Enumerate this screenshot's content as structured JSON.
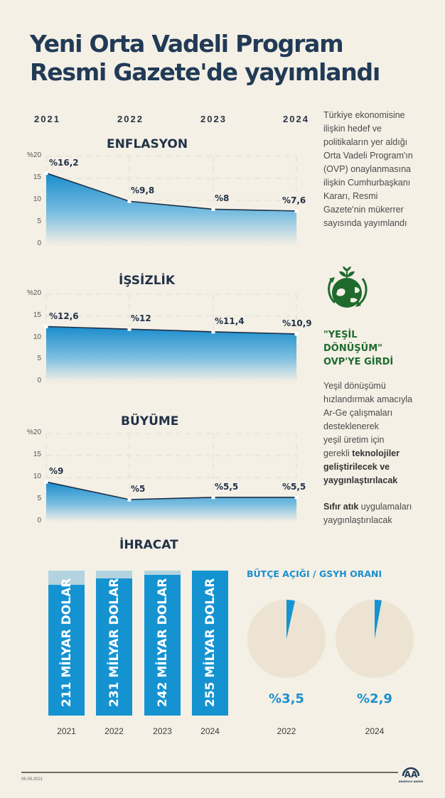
{
  "title": {
    "line1": "Yeni Orta Vadeli Program",
    "line2": "Resmi Gazete'de yayımlandı"
  },
  "years": [
    "2021",
    "2022",
    "2023",
    "2024"
  ],
  "intro_text": [
    "Türkiye ekonomisine",
    "ilişkin hedef ve",
    "politikaların yer aldığı",
    "Orta Vadeli Program'ın",
    "(OVP) onaylanmasına",
    "ilişkin Cumhurbaşkanı",
    "Kararı, Resmi",
    "Gazete'nin mükerrer",
    "sayısında yayımlandı"
  ],
  "green": {
    "icon": "green-earth-icon",
    "heading": [
      "\"YEŞİL",
      "DÖNÜŞÜM\"",
      "OVP'YE GİRDİ"
    ],
    "para1_plain": [
      "Yeşil dönüşümü",
      "hızlandırmak amacıyla",
      "Ar-Ge çalışmaları",
      "desteklenerek",
      "yeşil üretim için"
    ],
    "para1_mixed_plain": "gerekli ",
    "para1_mixed_bold": "teknolojiler",
    "para1_bold": [
      "geliştirilecek ve",
      "yaygınlaştırılacak"
    ],
    "para2_bold": "Sıfır atık",
    "para2_plain": " uygulamaları",
    "para2_line2": "yaygınlaştırılacak"
  },
  "colors": {
    "title": "#213a56",
    "accent_blue": "#1593d1",
    "bar_bg": "#b2d3df",
    "green": "#1f6b2e",
    "pie_bg": "#ede3d2",
    "background": "#f4f0e6"
  },
  "chart_data": [
    {
      "type": "area",
      "title": "ENFLASYON",
      "categories": [
        "2021",
        "2022",
        "2023",
        "2024"
      ],
      "values": [
        16.2,
        9.8,
        8,
        7.6
      ],
      "labels": [
        "%16,2",
        "%9,8",
        "%8",
        "%7,6"
      ],
      "yticks": [
        "%20",
        "15",
        "10",
        "5",
        "0"
      ],
      "ylim": [
        0,
        20
      ],
      "grid": true
    },
    {
      "type": "area",
      "title": "İŞSİZLİK",
      "categories": [
        "2021",
        "2022",
        "2023",
        "2024"
      ],
      "values": [
        12.6,
        12,
        11.4,
        10.9
      ],
      "labels": [
        "%12,6",
        "%12",
        "%11,4",
        "%10,9"
      ],
      "yticks": [
        "%20",
        "15",
        "10",
        "5",
        "0"
      ],
      "ylim": [
        0,
        20
      ],
      "grid": true
    },
    {
      "type": "area",
      "title": "BÜYÜME",
      "categories": [
        "2021",
        "2022",
        "2023",
        "2024"
      ],
      "values": [
        9,
        5,
        5.5,
        5.5
      ],
      "labels": [
        "%9",
        "%5",
        "%5,5",
        "%5,5"
      ],
      "yticks": [
        "%20",
        "15",
        "10",
        "5",
        "0"
      ],
      "ylim": [
        0,
        20
      ],
      "grid": true
    },
    {
      "type": "bar",
      "title": "İHRACAT",
      "categories": [
        "2021",
        "2022",
        "2023",
        "2024"
      ],
      "values": [
        211,
        231,
        242,
        255
      ],
      "labels": [
        "211 MİLYAR DOLAR",
        "231 MİLYAR DOLAR",
        "242 MİLYAR DOLAR",
        "255 MİLYAR DOLAR"
      ],
      "unit": "milyar dolar",
      "ylim": [
        0,
        255
      ]
    },
    {
      "type": "pie",
      "title": "BÜTÇE AÇIĞI / GSYH ORANI",
      "categories": [
        "2022",
        "2024"
      ],
      "values": [
        3.5,
        2.9
      ],
      "labels": [
        "%3,5",
        "%2,9"
      ]
    }
  ],
  "footer": {
    "date": "06.09.2021",
    "logo": "AA",
    "logo_text": "ANADOLU AJANSI"
  }
}
